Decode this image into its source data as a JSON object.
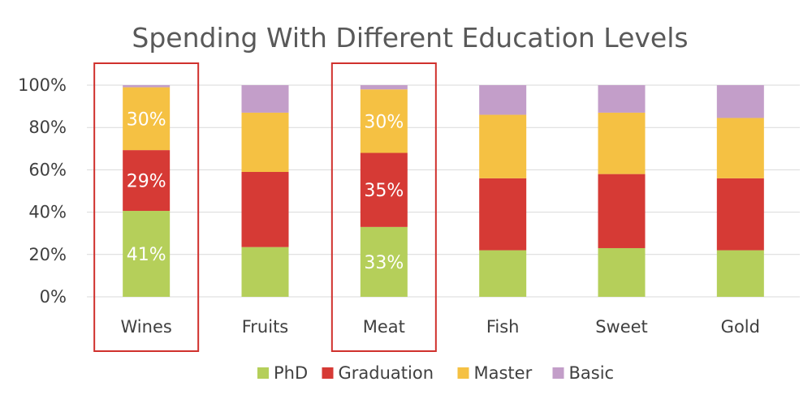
{
  "chart_data": {
    "type": "bar",
    "stacked": true,
    "percent_stacked": true,
    "title": "Spending With Different Education Levels",
    "xlabel": "",
    "ylabel": "",
    "categories": [
      "Wines",
      "Fruits",
      "Meat",
      "Fish",
      "Sweet",
      "Gold"
    ],
    "series": [
      {
        "name": "PhD",
        "color": "#b5cf5a",
        "values": [
          41,
          23.5,
          33,
          22,
          23,
          22
        ]
      },
      {
        "name": "Graduation",
        "color": "#d63a35",
        "values": [
          29,
          35.5,
          35,
          34,
          35,
          34
        ]
      },
      {
        "name": "Master",
        "color": "#f5c143",
        "values": [
          30,
          28,
          30,
          30,
          29,
          28.5
        ]
      },
      {
        "name": "Basic",
        "color": "#c39ec9",
        "values": [
          1,
          13,
          2,
          14,
          13,
          15.5
        ]
      }
    ],
    "ylim": [
      0,
      100
    ],
    "yticks": [
      "0%",
      "20%",
      "40%",
      "60%",
      "80%",
      "100%"
    ],
    "grid": true,
    "legend_position": "bottom",
    "data_labels": [
      {
        "category": "Wines",
        "series": "PhD",
        "text": "41%"
      },
      {
        "category": "Wines",
        "series": "Graduation",
        "text": "29%"
      },
      {
        "category": "Wines",
        "series": "Master",
        "text": "30%"
      },
      {
        "category": "Meat",
        "series": "PhD",
        "text": "33%"
      },
      {
        "category": "Meat",
        "series": "Graduation",
        "text": "35%"
      },
      {
        "category": "Meat",
        "series": "Master",
        "text": "30%"
      }
    ],
    "highlighted_categories": [
      "Wines",
      "Meat"
    ],
    "highlight_color": "#d0312d"
  }
}
